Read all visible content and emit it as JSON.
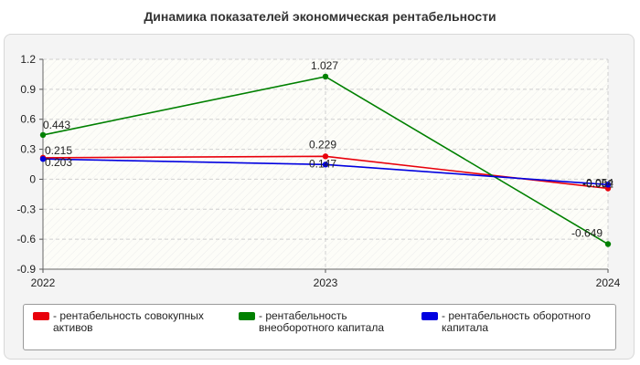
{
  "chart_data": {
    "type": "line",
    "title": "Динамика показателей экономическая рентабельности",
    "x": [
      "2022",
      "2023",
      "2024"
    ],
    "ylim": [
      -0.9,
      1.2
    ],
    "yticks": [
      "1.2",
      "0.9",
      "0.6",
      "0.3",
      "0",
      "-0.3",
      "-0.6",
      "-0.9"
    ],
    "grid": true,
    "legend_position": "bottom",
    "series": [
      {
        "name": "рентабельность совокупных активов",
        "color": "#e8000b",
        "values": [
          0.215,
          0.229,
          -0.092
        ],
        "labels": [
          "0.215",
          "0.229",
          "-0.092"
        ]
      },
      {
        "name": "рентабельность внеоборотного капитала",
        "color": "#008000",
        "values": [
          0.443,
          1.027,
          -0.649
        ],
        "labels": [
          "0.443",
          "1.027",
          "-0.649"
        ]
      },
      {
        "name": "рентабельность оборотного капитала",
        "color": "#0000e0",
        "values": [
          0.203,
          0.147,
          -0.054
        ],
        "labels": [
          "0.203",
          "0.147",
          "-0.054"
        ]
      }
    ]
  }
}
